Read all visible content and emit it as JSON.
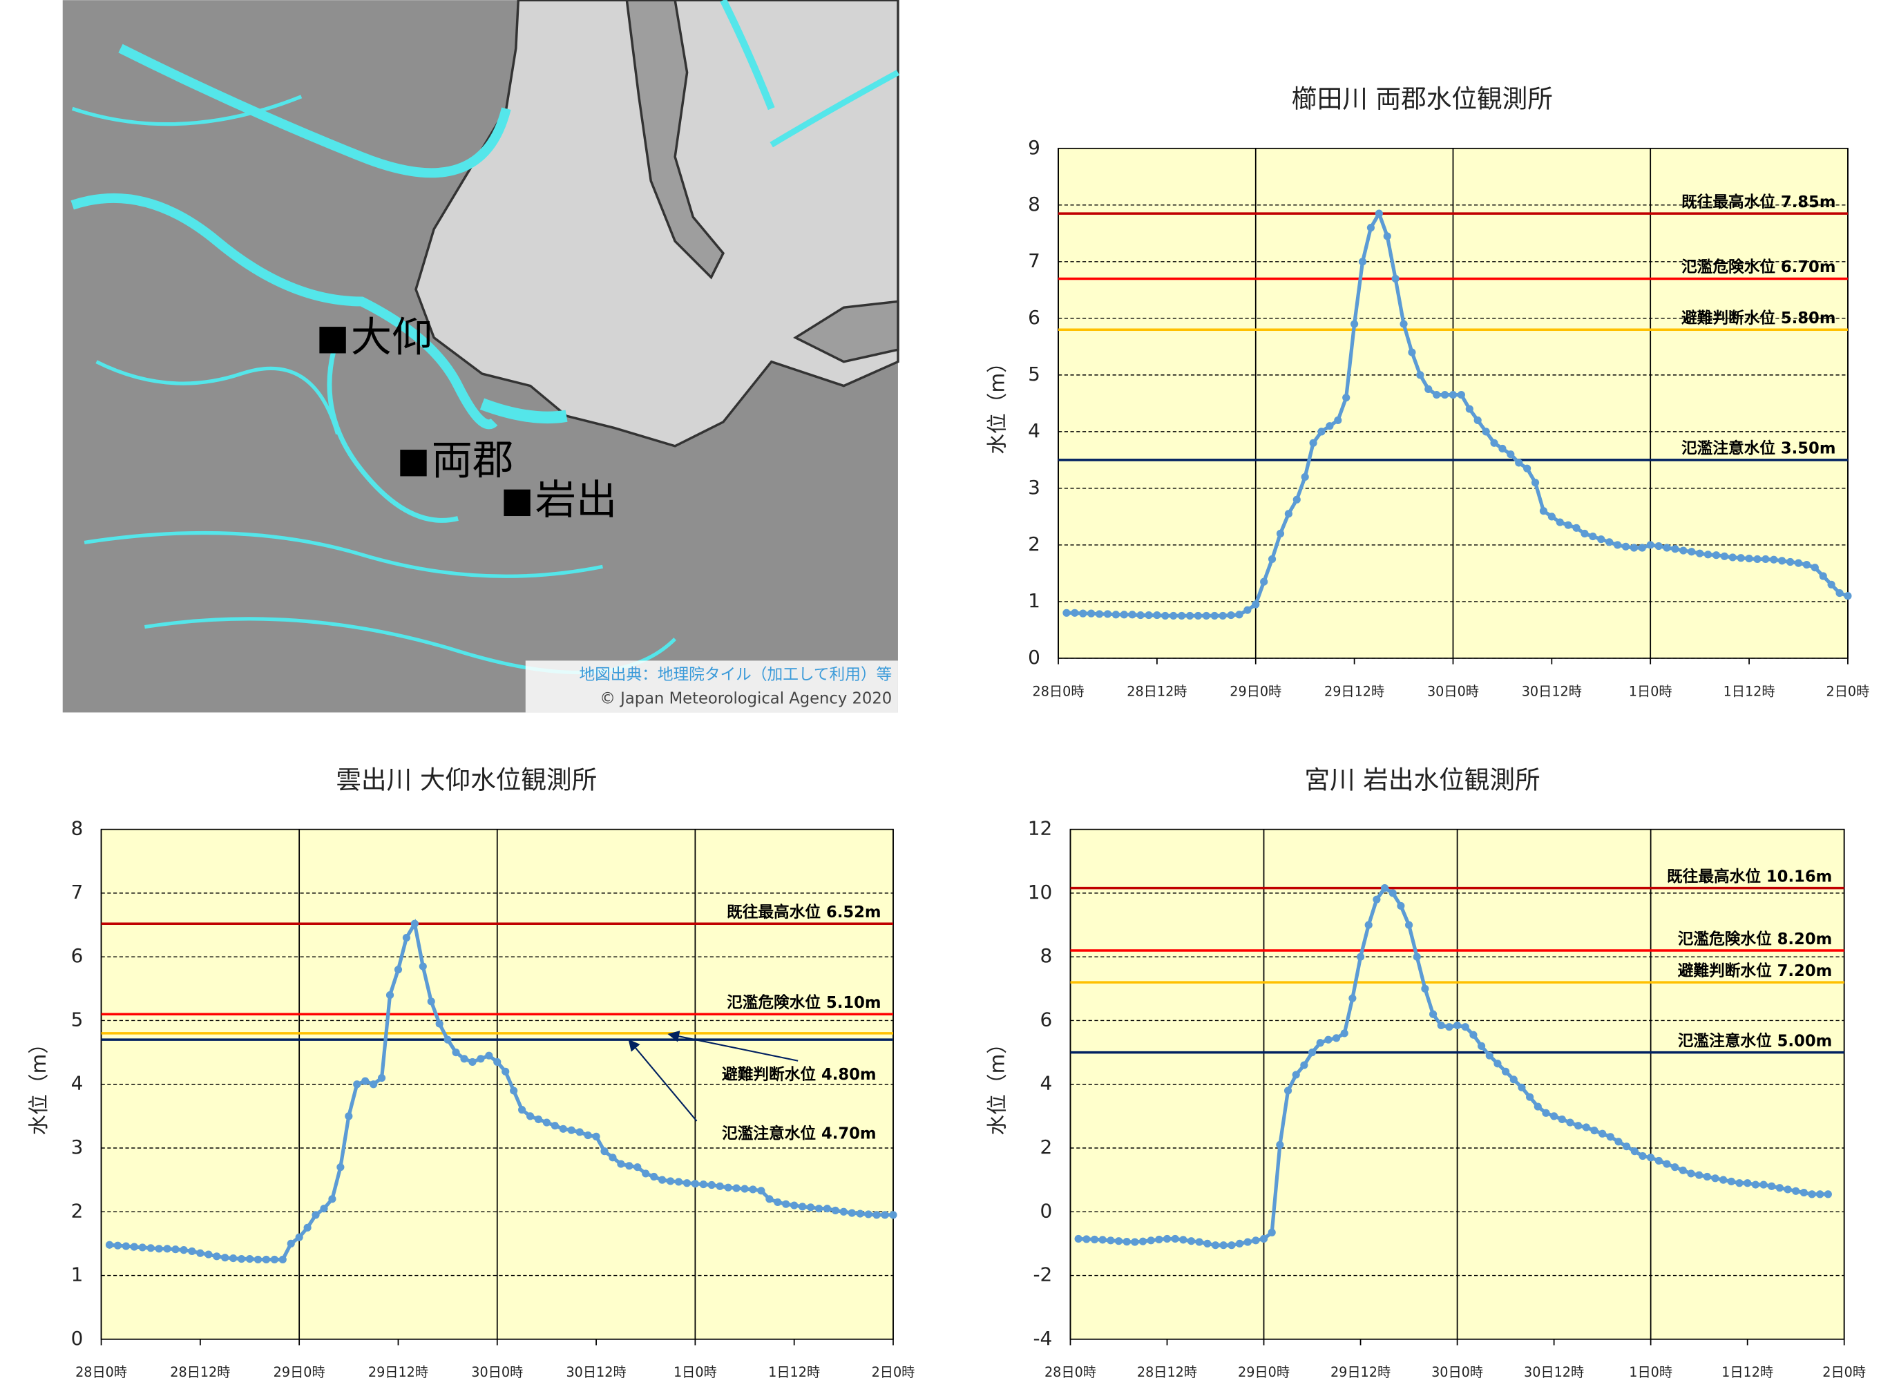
{
  "map": {
    "places": [
      "大仰",
      "両郡",
      "岩出"
    ],
    "credit": [
      "地図出典：地理院タイル（加工して利用）等",
      "© Japan Meteorological Agency 2020"
    ]
  },
  "chart_data": [
    {
      "type": "line",
      "title": "櫛田川  両郡水位観測所",
      "ylabel": "水位（m）",
      "color": "#5b9bd5",
      "background": "#ffffcc",
      "x": [
        1,
        2,
        3,
        4,
        5,
        6,
        7,
        8,
        9,
        10,
        11,
        12,
        13,
        14,
        15,
        16,
        17,
        18,
        19,
        20,
        21,
        22,
        23,
        24,
        25,
        26,
        27,
        28,
        29,
        30,
        31,
        32,
        33,
        34,
        35,
        36,
        37,
        38,
        39,
        40,
        41,
        42,
        43,
        44,
        45,
        46,
        47,
        48,
        49,
        50,
        51,
        52,
        53,
        54,
        55,
        56,
        57,
        58,
        59,
        60,
        61,
        62,
        63,
        64,
        65,
        66,
        67,
        68,
        69,
        70,
        71,
        72,
        73,
        74,
        75,
        76,
        77,
        78,
        79,
        80,
        81,
        82,
        83,
        84,
        85,
        86,
        87,
        88,
        89,
        90,
        91,
        92,
        93,
        94,
        95,
        96
      ],
      "values": [
        0.8,
        0.8,
        0.79,
        0.79,
        0.78,
        0.78,
        0.77,
        0.77,
        0.77,
        0.76,
        0.76,
        0.76,
        0.75,
        0.75,
        0.75,
        0.75,
        0.75,
        0.75,
        0.75,
        0.75,
        0.76,
        0.77,
        0.85,
        0.95,
        1.35,
        1.75,
        2.2,
        2.55,
        2.8,
        3.2,
        3.8,
        4.0,
        4.1,
        4.2,
        4.6,
        5.9,
        7.0,
        7.6,
        7.85,
        7.45,
        6.7,
        5.9,
        5.4,
        5.0,
        4.75,
        4.65,
        4.65,
        4.65,
        4.65,
        4.4,
        4.2,
        4.0,
        3.8,
        3.7,
        3.6,
        3.45,
        3.35,
        3.1,
        2.6,
        2.5,
        2.4,
        2.35,
        2.3,
        2.2,
        2.15,
        2.1,
        2.05,
        2.0,
        1.97,
        1.95,
        1.95,
        2.0,
        1.98,
        1.95,
        1.93,
        1.9,
        1.88,
        1.85,
        1.83,
        1.82,
        1.8,
        1.78,
        1.77,
        1.76,
        1.75,
        1.75,
        1.74,
        1.72,
        1.7,
        1.68,
        1.65,
        1.6,
        1.45,
        1.3,
        1.15,
        1.1
      ],
      "lines": [
        {
          "name": "既往最高水位 7.85m",
          "value": 7.85,
          "color": "#c00000"
        },
        {
          "name": "氾濫危険水位 6.70m",
          "value": 6.7,
          "color": "#ff0000"
        },
        {
          "name": "避難判断水位 5.80m",
          "value": 5.8,
          "color": "#ffc000"
        },
        {
          "name": "氾濫注意水位 3.50m",
          "value": 3.5,
          "color": "#002060"
        }
      ],
      "xlim": [
        0,
        96
      ],
      "xticks": [
        {
          "value": 0,
          "label": "28日0時"
        },
        {
          "value": 12,
          "label": "28日12時"
        },
        {
          "value": 24,
          "label": "29日0時"
        },
        {
          "value": 36,
          "label": "29日12時"
        },
        {
          "value": 48,
          "label": "30日0時"
        },
        {
          "value": 60,
          "label": "30日12時"
        },
        {
          "value": 72,
          "label": "1日0時"
        },
        {
          "value": 84,
          "label": "1日12時"
        },
        {
          "value": 96,
          "label": "2日0時"
        }
      ],
      "ylim": [
        0,
        9
      ],
      "yticks": [
        0,
        1,
        2,
        3,
        4,
        5,
        6,
        7,
        8,
        9
      ]
    },
    {
      "type": "line",
      "title": "雲出川  大仰水位観測所",
      "ylabel": "水位（m）",
      "color": "#5b9bd5",
      "background": "#ffffcc",
      "x": [
        1,
        2,
        3,
        4,
        5,
        6,
        7,
        8,
        9,
        10,
        11,
        12,
        13,
        14,
        15,
        16,
        17,
        18,
        19,
        20,
        21,
        22,
        23,
        24,
        25,
        26,
        27,
        28,
        29,
        30,
        31,
        32,
        33,
        34,
        35,
        36,
        37,
        38,
        39,
        40,
        41,
        42,
        43,
        44,
        45,
        46,
        47,
        48,
        49,
        50,
        51,
        52,
        53,
        54,
        55,
        56,
        57,
        58,
        59,
        60,
        61,
        62,
        63,
        64,
        65,
        66,
        67,
        68,
        69,
        70,
        71,
        72,
        73,
        74,
        75,
        76,
        77,
        78,
        79,
        80,
        81,
        82,
        83,
        84,
        85,
        86,
        87,
        88,
        89,
        90,
        91,
        92,
        93,
        94,
        95,
        96
      ],
      "values": [
        1.48,
        1.47,
        1.46,
        1.45,
        1.44,
        1.43,
        1.42,
        1.42,
        1.41,
        1.4,
        1.38,
        1.35,
        1.33,
        1.3,
        1.28,
        1.27,
        1.26,
        1.26,
        1.25,
        1.25,
        1.25,
        1.25,
        1.5,
        1.6,
        1.75,
        1.95,
        2.05,
        2.2,
        2.7,
        3.5,
        4.0,
        4.05,
        4.0,
        4.1,
        5.4,
        5.8,
        6.3,
        6.52,
        5.85,
        5.3,
        4.95,
        4.7,
        4.5,
        4.4,
        4.35,
        4.4,
        4.45,
        4.35,
        4.2,
        3.9,
        3.6,
        3.5,
        3.45,
        3.4,
        3.35,
        3.3,
        3.28,
        3.25,
        3.2,
        3.18,
        2.95,
        2.85,
        2.75,
        2.72,
        2.7,
        2.6,
        2.55,
        2.5,
        2.48,
        2.47,
        2.45,
        2.44,
        2.43,
        2.42,
        2.4,
        2.38,
        2.37,
        2.36,
        2.35,
        2.33,
        2.2,
        2.15,
        2.12,
        2.1,
        2.08,
        2.07,
        2.05,
        2.05,
        2.02,
        2.0,
        1.98,
        1.97,
        1.96,
        1.95,
        1.95,
        1.95
      ],
      "lines": [
        {
          "name": "既往最高水位 6.52m",
          "value": 6.52,
          "color": "#c00000"
        },
        {
          "name": "氾濫危険水位 5.10m",
          "value": 5.1,
          "color": "#ff0000"
        },
        {
          "name": "避難判断水位 4.80m",
          "value": 4.8,
          "color": "#ffc000"
        },
        {
          "name": "氾濫注意水位 4.70m",
          "value": 4.7,
          "color": "#002060"
        }
      ],
      "xlim": [
        0,
        96
      ],
      "xticks": [
        {
          "value": 0,
          "label": "28日0時"
        },
        {
          "value": 12,
          "label": "28日12時"
        },
        {
          "value": 24,
          "label": "29日0時"
        },
        {
          "value": 36,
          "label": "29日12時"
        },
        {
          "value": 48,
          "label": "30日0時"
        },
        {
          "value": 60,
          "label": "30日12時"
        },
        {
          "value": 72,
          "label": "1日0時"
        },
        {
          "value": 84,
          "label": "1日12時"
        },
        {
          "value": 96,
          "label": "2日0時"
        }
      ],
      "ylim": [
        0,
        8
      ],
      "yticks": [
        0,
        1,
        2,
        3,
        4,
        5,
        6,
        7,
        8
      ]
    },
    {
      "type": "line",
      "title": "宮川  岩出水位観測所",
      "ylabel": "水位（m）",
      "color": "#5b9bd5",
      "background": "#ffffcc",
      "x": [
        1,
        2,
        3,
        4,
        5,
        6,
        7,
        8,
        9,
        10,
        11,
        12,
        13,
        14,
        15,
        16,
        17,
        18,
        19,
        20,
        21,
        22,
        23,
        24,
        25,
        26,
        27,
        28,
        29,
        30,
        31,
        32,
        33,
        34,
        35,
        36,
        37,
        38,
        39,
        40,
        41,
        42,
        43,
        44,
        45,
        46,
        47,
        48,
        49,
        50,
        51,
        52,
        53,
        54,
        55,
        56,
        57,
        58,
        59,
        60,
        61,
        62,
        63,
        64,
        65,
        66,
        67,
        68,
        69,
        70,
        71,
        72,
        73,
        74,
        75,
        76,
        77,
        78,
        79,
        80,
        81,
        82,
        83,
        84,
        85,
        86,
        87,
        88,
        89,
        90,
        91,
        92,
        93,
        94
      ],
      "values": [
        -0.85,
        -0.86,
        -0.87,
        -0.88,
        -0.9,
        -0.92,
        -0.94,
        -0.95,
        -0.93,
        -0.9,
        -0.87,
        -0.85,
        -0.85,
        -0.88,
        -0.92,
        -0.95,
        -1.0,
        -1.05,
        -1.05,
        -1.05,
        -1.0,
        -0.95,
        -0.9,
        -0.85,
        -0.65,
        2.1,
        3.8,
        4.3,
        4.6,
        5.0,
        5.3,
        5.4,
        5.45,
        5.6,
        6.7,
        8.0,
        9.0,
        9.8,
        10.16,
        10.0,
        9.6,
        9.0,
        8.0,
        7.0,
        6.2,
        5.85,
        5.8,
        5.85,
        5.8,
        5.55,
        5.2,
        4.9,
        4.65,
        4.4,
        4.15,
        3.9,
        3.6,
        3.3,
        3.1,
        3.0,
        2.9,
        2.8,
        2.7,
        2.65,
        2.55,
        2.45,
        2.35,
        2.2,
        2.05,
        1.9,
        1.75,
        1.7,
        1.6,
        1.5,
        1.4,
        1.3,
        1.2,
        1.15,
        1.1,
        1.05,
        1.0,
        0.95,
        0.9,
        0.9,
        0.85,
        0.85,
        0.8,
        0.75,
        0.7,
        0.65,
        0.6,
        0.55,
        0.55,
        0.55
      ],
      "lines": [
        {
          "name": "既往最高水位 10.16m",
          "value": 10.16,
          "color": "#c00000"
        },
        {
          "name": "氾濫危険水位 8.20m",
          "value": 8.2,
          "color": "#ff0000"
        },
        {
          "name": "避難判断水位 7.20m",
          "value": 7.2,
          "color": "#ffc000"
        },
        {
          "name": "氾濫注意水位 5.00m",
          "value": 5.0,
          "color": "#002060"
        }
      ],
      "xlim": [
        0,
        96
      ],
      "xticks": [
        {
          "value": 0,
          "label": "28日0時"
        },
        {
          "value": 12,
          "label": "28日12時"
        },
        {
          "value": 24,
          "label": "29日0時"
        },
        {
          "value": 36,
          "label": "29日12時"
        },
        {
          "value": 48,
          "label": "30日0時"
        },
        {
          "value": 60,
          "label": "30日12時"
        },
        {
          "value": 72,
          "label": "1日0時"
        },
        {
          "value": 84,
          "label": "1日12時"
        },
        {
          "value": 96,
          "label": "2日0時"
        }
      ],
      "ylim": [
        -4,
        12
      ],
      "yticks": [
        -4,
        -2,
        0,
        2,
        4,
        6,
        8,
        10,
        12
      ]
    }
  ]
}
